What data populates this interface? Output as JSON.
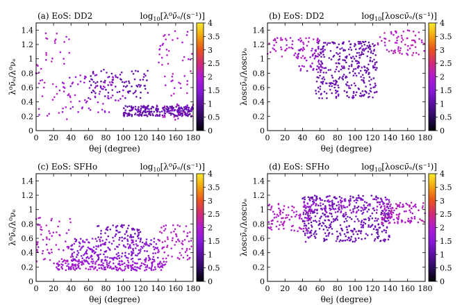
{
  "colorbar": {
    "ticks": [
      "0",
      "0.5",
      "1",
      "1.5",
      "2",
      "2.5",
      "3",
      "3.5",
      "4"
    ],
    "range": [
      0,
      4
    ],
    "colors": [
      "#000004",
      "#2c0b5c",
      "#5a10a0",
      "#8a18d8",
      "#b01cd0",
      "#d12c78",
      "#e8521f",
      "#f2a210",
      "#fbec2d"
    ]
  },
  "chart_data": [
    {
      "type": "scatter",
      "panel_label": "(a) EoS: DD2",
      "cbar_label_main": "log",
      "cbar_label_sub": "10",
      "cbar_label_rest": "[λ⁰ν̄ₑ/(s⁻¹)]",
      "ylabel": "λ⁰ν̄ₑ/λ⁰νₑ",
      "xlabel": "θej (degree)",
      "xlim": [
        0,
        180
      ],
      "ylim": [
        0,
        1.5
      ],
      "xticks": [
        "0",
        "20",
        "40",
        "60",
        "80",
        "100",
        "120",
        "140",
        "160",
        "180"
      ],
      "yticks": [
        "0",
        "0.2",
        "0.4",
        "0.6",
        "0.8",
        "1",
        "1.2",
        "1.4"
      ],
      "groups": [
        {
          "x": [
            100,
            180
          ],
          "y": [
            0.2,
            0.35
          ],
          "n": 260,
          "c": [
            0.9,
            1.4
          ]
        },
        {
          "x": [
            60,
            130
          ],
          "y": [
            0.45,
            0.85
          ],
          "n": 90,
          "c": [
            0.9,
            1.3
          ]
        },
        {
          "x": [
            0,
            40
          ],
          "y": [
            0.15,
            1.4
          ],
          "n": 50,
          "c": [
            1.8,
            2.2
          ]
        },
        {
          "x": [
            140,
            180
          ],
          "y": [
            0.15,
            1.4
          ],
          "n": 60,
          "c": [
            1.8,
            2.2
          ]
        },
        {
          "x": [
            30,
            100
          ],
          "y": [
            0.25,
            0.8
          ],
          "n": 70,
          "c": [
            1.5,
            2.0
          ]
        }
      ]
    },
    {
      "type": "scatter",
      "panel_label": "(b) EoS: DD2",
      "cbar_label_main": "log",
      "cbar_label_sub": "10",
      "cbar_label_rest": "[λoscν̄ₑ/(s⁻¹)]",
      "ylabel": "λoscν̄ₑ/λoscνₑ",
      "xlabel": "θej (degree)",
      "xlim": [
        0,
        180
      ],
      "ylim": [
        0,
        1.5
      ],
      "xticks": [
        "0",
        "20",
        "40",
        "60",
        "80",
        "100",
        "120",
        "140",
        "160",
        "180"
      ],
      "yticks": [
        "0",
        "0.2",
        "0.4",
        "0.6",
        "0.8",
        "1",
        "1.2",
        "1.4"
      ],
      "groups": [
        {
          "x": [
            55,
            125
          ],
          "y": [
            0.45,
            1.25
          ],
          "n": 330,
          "c": [
            1.0,
            1.3
          ]
        },
        {
          "x": [
            0,
            60
          ],
          "y": [
            1.0,
            1.3
          ],
          "n": 70,
          "c": [
            1.8,
            2.2
          ]
        },
        {
          "x": [
            125,
            180
          ],
          "y": [
            1.05,
            1.4
          ],
          "n": 70,
          "c": [
            1.9,
            2.3
          ]
        },
        {
          "x": [
            35,
            65
          ],
          "y": [
            0.8,
            1.15
          ],
          "n": 40,
          "c": [
            1.3,
            1.8
          ]
        }
      ]
    },
    {
      "type": "scatter",
      "panel_label": "(c) EoS: SFHo",
      "cbar_label_main": "log",
      "cbar_label_sub": "10",
      "cbar_label_rest": "[λ⁰ν̄ₑ/(s⁻¹)]",
      "ylabel": "λ⁰ν̄ₑ/λ⁰νₑ",
      "xlabel": "θej (degree)",
      "xlim": [
        0,
        180
      ],
      "ylim": [
        0,
        1.5
      ],
      "xticks": [
        "0",
        "20",
        "40",
        "60",
        "80",
        "100",
        "120",
        "140",
        "160",
        "180"
      ],
      "yticks": [
        "0",
        "0.2",
        "0.4",
        "0.6",
        "0.8",
        "1",
        "1.2",
        "1.4"
      ],
      "groups": [
        {
          "x": [
            20,
            150
          ],
          "y": [
            0.15,
            0.3
          ],
          "n": 230,
          "c": [
            1.5,
            2.0
          ]
        },
        {
          "x": [
            40,
            140
          ],
          "y": [
            0.3,
            0.6
          ],
          "n": 220,
          "c": [
            1.3,
            1.7
          ]
        },
        {
          "x": [
            70,
            120
          ],
          "y": [
            0.6,
            0.8
          ],
          "n": 60,
          "c": [
            1.1,
            1.4
          ]
        },
        {
          "x": [
            0,
            40
          ],
          "y": [
            0.25,
            0.9
          ],
          "n": 60,
          "c": [
            1.8,
            2.2
          ]
        },
        {
          "x": [
            140,
            180
          ],
          "y": [
            0.3,
            0.8
          ],
          "n": 70,
          "c": [
            1.8,
            2.2
          ]
        }
      ]
    },
    {
      "type": "scatter",
      "panel_label": "(d) EoS: SFHo",
      "cbar_label_main": "log",
      "cbar_label_sub": "10",
      "cbar_label_rest": "[λoscν̄ₑ/(s⁻¹)]",
      "ylabel": "λoscν̄ₑ/λoscνₑ",
      "xlabel": "θej (degree)",
      "xlim": [
        0,
        180
      ],
      "ylim": [
        0,
        1.5
      ],
      "xticks": [
        "0",
        "20",
        "40",
        "60",
        "80",
        "100",
        "120",
        "140",
        "160",
        "180"
      ],
      "yticks": [
        "0",
        "0.2",
        "0.4",
        "0.6",
        "0.8",
        "1",
        "1.2",
        "1.4"
      ],
      "groups": [
        {
          "x": [
            40,
            140
          ],
          "y": [
            0.55,
            1.2
          ],
          "n": 420,
          "c": [
            1.0,
            1.4
          ]
        },
        {
          "x": [
            0,
            50
          ],
          "y": [
            0.7,
            1.1
          ],
          "n": 90,
          "c": [
            1.8,
            2.2
          ]
        },
        {
          "x": [
            130,
            180
          ],
          "y": [
            0.8,
            1.1
          ],
          "n": 110,
          "c": [
            1.8,
            2.3
          ]
        },
        {
          "x": [
            40,
            140
          ],
          "y": [
            0.95,
            1.15
          ],
          "n": 80,
          "c": [
            1.5,
            1.9
          ]
        }
      ]
    }
  ]
}
